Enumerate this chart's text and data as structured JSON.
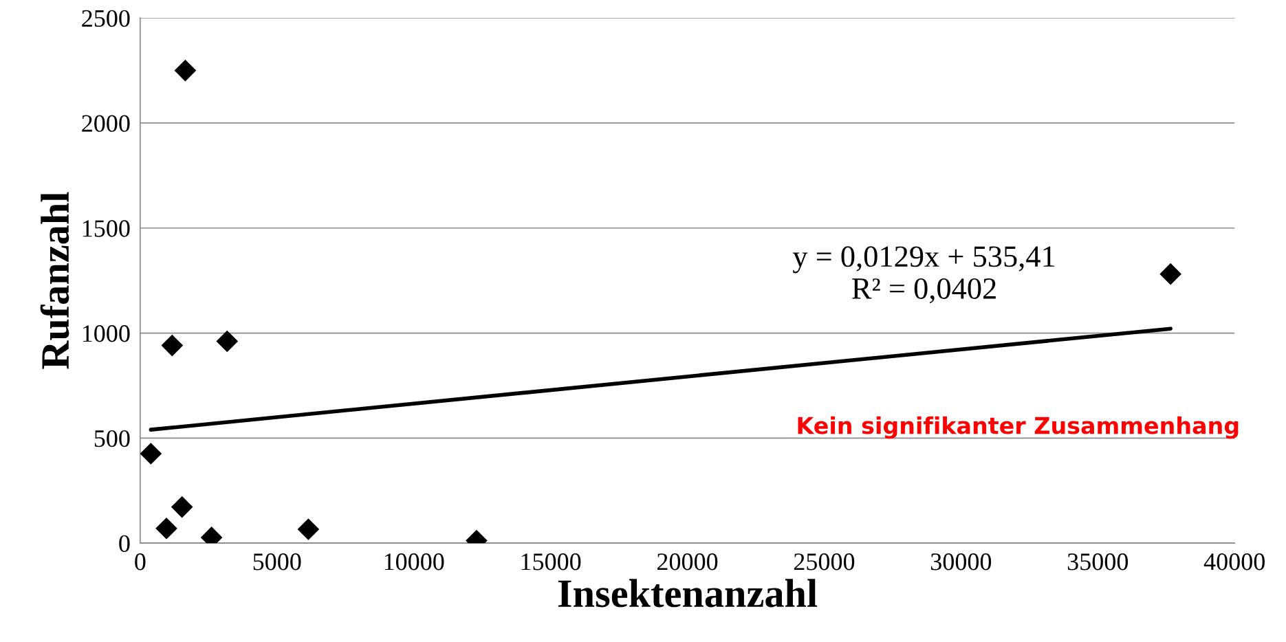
{
  "chart_data": {
    "type": "scatter",
    "xlabel": "Insektenanzahl",
    "ylabel": "Rufanzahl",
    "series": [
      {
        "color": "#000000",
        "marker": "diamond",
        "x": [
          1649,
          1169,
          3178,
          390,
          1529,
          960,
          2609,
          6147,
          12294,
          37661
        ],
        "values": [
          2250,
          941,
          961,
          426,
          172,
          70,
          27,
          66,
          12,
          1281
        ]
      },
      {
        "type": "line",
        "color": "#000000",
        "marker": "none",
        "line_style": "solid",
        "x": [
          390,
          37661
        ],
        "values": [
          540,
          1021
        ]
      }
    ],
    "xlim": [
      0,
      40000
    ],
    "xticks": [
      0,
      5000,
      10000,
      15000,
      20000,
      25000,
      30000,
      35000,
      40000
    ],
    "ylim": [
      0,
      2500
    ],
    "yticks": [
      0,
      500,
      1000,
      1500,
      2000,
      2500
    ],
    "grid": "y",
    "legend": false,
    "annotations": [
      "y = 0,0129x + 535,41\nR² = 0,0402",
      "Kein signifikanter Zusammenhang"
    ]
  }
}
